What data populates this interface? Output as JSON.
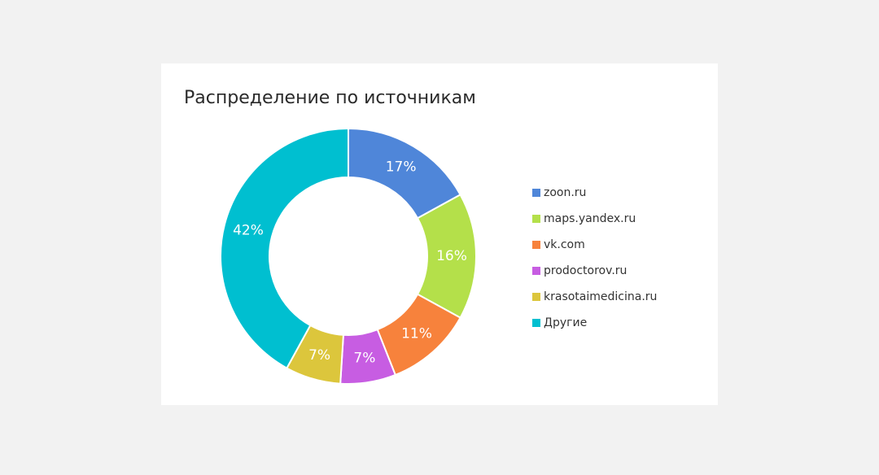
{
  "chart_data": {
    "type": "pie",
    "title": "Распределение по источникам",
    "categories": [
      "zoon.ru",
      "maps.yandex.ru",
      "vk.com",
      "prodoctorov.ru",
      "krasotaimedicina.ru",
      "Другие"
    ],
    "values": [
      17,
      16,
      11,
      7,
      7,
      42
    ],
    "value_labels": [
      "17%",
      "16%",
      "11%",
      "7%",
      "7%",
      "42%"
    ],
    "colors": [
      "#4f86d9",
      "#b4e04a",
      "#f7823c",
      "#c75de2",
      "#dcc63c",
      "#00bfd0"
    ],
    "donut": true,
    "legend": "right"
  }
}
